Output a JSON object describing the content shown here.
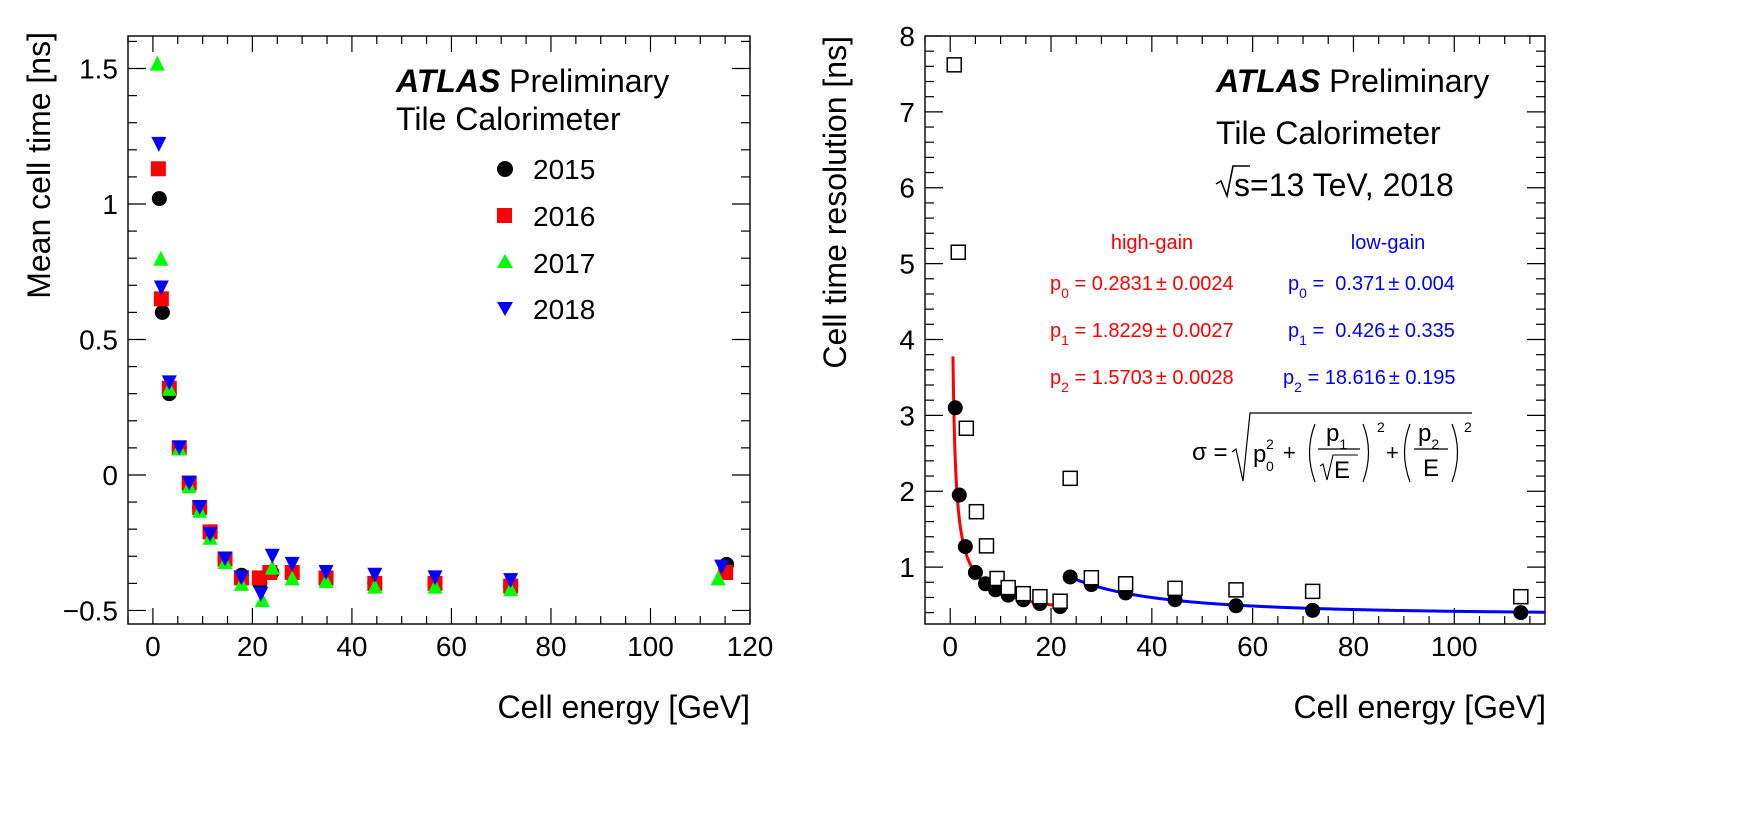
{
  "colors": {
    "c2015": "#000000",
    "c2016": "#ff0000",
    "c2017": "#00ff00",
    "c2018": "#0000ff",
    "high_gain": "#ff0000",
    "low_gain": "#0000ff",
    "resolution_open": "#000000"
  },
  "chart_data": [
    {
      "type": "scatter",
      "title_bold": "ATLAS",
      "title_rest": "Preliminary",
      "subtitle": "Tile Calorimeter",
      "xlabel": "Cell energy [GeV]",
      "ylabel": "Mean cell time [ns]",
      "xlim": [
        -5,
        120
      ],
      "ylim": [
        -0.55,
        1.62
      ],
      "xticks": [
        0,
        20,
        40,
        60,
        80,
        100,
        120
      ],
      "yticks": [
        -0.5,
        0,
        0.5,
        1,
        1.5
      ],
      "ytick_labels": [
        "−0.5",
        "0",
        "0.5",
        "1",
        "1.5"
      ],
      "legend": [
        "2015",
        "2016",
        "2017",
        "2018"
      ],
      "series": [
        {
          "name": "2015",
          "marker": "circle",
          "x": [
            1.3,
            1.9,
            3.3,
            5.3,
            7.3,
            9.4,
            11.5,
            14.5,
            17.8,
            21.5,
            23.9,
            28.0,
            34.8,
            44.6,
            56.7,
            71.9,
            115.3
          ],
          "y": [
            1.02,
            0.6,
            0.3,
            0.1,
            -0.03,
            -0.12,
            -0.21,
            -0.31,
            -0.37,
            -0.4,
            -0.36,
            -0.37,
            -0.38,
            -0.4,
            -0.4,
            -0.41,
            -0.33
          ]
        },
        {
          "name": "2016",
          "marker": "square",
          "x": [
            1.1,
            1.7,
            3.3,
            5.3,
            7.3,
            9.4,
            11.5,
            14.5,
            17.8,
            21.4,
            23.5,
            28.0,
            34.8,
            44.6,
            56.7,
            71.9,
            115.1
          ],
          "y": [
            1.13,
            0.65,
            0.32,
            0.1,
            -0.03,
            -0.12,
            -0.21,
            -0.31,
            -0.38,
            -0.38,
            -0.36,
            -0.36,
            -0.38,
            -0.4,
            -0.4,
            -0.41,
            -0.36
          ]
        },
        {
          "name": "2017",
          "marker": "triangle-up",
          "x": [
            0.9,
            1.6,
            3.3,
            5.3,
            7.3,
            9.4,
            11.5,
            14.5,
            17.8,
            22.0,
            24.0,
            28.0,
            34.8,
            44.6,
            56.7,
            71.9,
            113.6
          ],
          "y": [
            1.52,
            0.8,
            0.32,
            0.1,
            -0.04,
            -0.13,
            -0.23,
            -0.32,
            -0.4,
            -0.46,
            -0.34,
            -0.38,
            -0.39,
            -0.41,
            -0.41,
            -0.42,
            -0.38
          ]
        },
        {
          "name": "2018",
          "marker": "triangle-down",
          "x": [
            1.2,
            1.7,
            3.3,
            5.3,
            7.3,
            9.4,
            11.5,
            14.5,
            17.8,
            21.7,
            24.0,
            28.0,
            34.8,
            44.6,
            56.7,
            71.9,
            114.3
          ],
          "y": [
            1.22,
            0.69,
            0.34,
            0.1,
            -0.03,
            -0.12,
            -0.22,
            -0.31,
            -0.38,
            -0.44,
            -0.3,
            -0.33,
            -0.36,
            -0.37,
            -0.38,
            -0.39,
            -0.34
          ]
        }
      ]
    },
    {
      "type": "scatter",
      "title_bold": "ATLAS",
      "title_rest": "Preliminary",
      "subtitle": "Tile Calorimeter",
      "energy_sqrt": "s",
      "energy_rest": "=13 TeV, 2018",
      "xlabel": "Cell energy [GeV]",
      "ylabel": "Cell time resolution [ns]",
      "xlim": [
        -5,
        118
      ],
      "ylim": [
        0.25,
        8.0
      ],
      "xticks": [
        0,
        20,
        40,
        60,
        80,
        100
      ],
      "yticks": [
        1,
        2,
        3,
        4,
        5,
        6,
        7,
        8
      ],
      "series": [
        {
          "name": "high-gain",
          "marker": "circle",
          "x": [
            1.0,
            1.8,
            3.0,
            5.0,
            7.0,
            9.0,
            11.5,
            14.5,
            17.8,
            21.8
          ],
          "y": [
            3.1,
            1.95,
            1.27,
            0.93,
            0.78,
            0.7,
            0.63,
            0.57,
            0.52,
            0.48
          ]
        },
        {
          "name": "low-gain",
          "marker": "circle",
          "x": [
            23.8,
            28.0,
            34.8,
            44.6,
            56.7,
            71.9,
            113.2
          ],
          "y": [
            0.87,
            0.77,
            0.66,
            0.57,
            0.49,
            0.43,
            0.4
          ]
        },
        {
          "name": "open-squares",
          "marker": "open-square",
          "x": [
            0.8,
            1.6,
            3.2,
            5.2,
            7.2,
            9.3,
            11.5,
            14.5,
            17.8,
            21.8,
            23.8,
            28.0,
            34.8,
            44.6,
            56.7,
            71.9,
            113.2
          ],
          "y": [
            7.62,
            5.15,
            2.83,
            1.73,
            1.28,
            0.85,
            0.73,
            0.65,
            0.61,
            0.55,
            2.17,
            0.86,
            0.78,
            0.72,
            0.7,
            0.68,
            0.61
          ]
        }
      ],
      "fits": [
        {
          "name": "high-gain",
          "p0": 0.2831,
          "p1": 1.8229,
          "p2": 1.5703,
          "xmin": 0.55,
          "xmax": 22.5
        },
        {
          "name": "low-gain",
          "p0": 0.371,
          "p1": 0.426,
          "p2": 18.616,
          "xmin": 23.0,
          "xmax": 118
        }
      ],
      "fit_text": {
        "high_header": "high-gain",
        "low_header": "low-gain",
        "high": [
          {
            "p": "p",
            "sub": "0",
            "val": " = 0.2831",
            "pm": "±",
            "err": " 0.0024"
          },
          {
            "p": "p",
            "sub": "1",
            "val": " = 1.8229",
            "pm": "±",
            "err": " 0.0027"
          },
          {
            "p": "p",
            "sub": "2",
            "val": " = 1.5703",
            "pm": "±",
            "err": " 0.0028"
          }
        ],
        "low": [
          {
            "p": "p",
            "sub": "0",
            "val": " =  0.371",
            "pm": "±",
            "err": " 0.004"
          },
          {
            "p": "p",
            "sub": "1",
            "val": " =  0.426",
            "pm": "±",
            "err": " 0.335"
          },
          {
            "p": "p",
            "sub": "2",
            "val": " = 18.616",
            "pm": "±",
            "err": " 0.195"
          }
        ]
      },
      "formula": {
        "sigma": "σ =",
        "p0": "p",
        "p0_sub": "0",
        "p0_sup": "2",
        "plus": "+",
        "p1": "p",
        "p1_sub": "1",
        "sqrtE": "E",
        "sq": "2",
        "p2": "p",
        "p2_sub": "2",
        "E": "E"
      }
    }
  ]
}
